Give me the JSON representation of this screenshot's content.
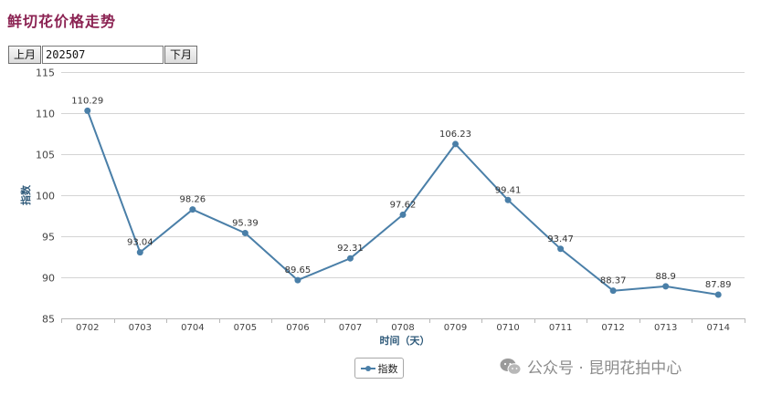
{
  "page": {
    "title": "鲜切花价格走势"
  },
  "nav": {
    "prev_label": "上月",
    "month_value": "202507",
    "next_label": "下月"
  },
  "watermark": {
    "text": "公众号 · 昆明花拍中心"
  },
  "chart_data": {
    "type": "line",
    "categories": [
      "0702",
      "0703",
      "0704",
      "0705",
      "0706",
      "0707",
      "0708",
      "0709",
      "0710",
      "0711",
      "0712",
      "0713",
      "0714"
    ],
    "series": [
      {
        "name": "指数",
        "values": [
          110.29,
          93.04,
          98.26,
          95.39,
          89.65,
          92.31,
          97.62,
          106.23,
          99.41,
          93.47,
          88.37,
          88.9,
          87.89
        ]
      }
    ],
    "value_labels": [
      "110.29",
      "93.04",
      "98.26",
      "95.39",
      "89.65",
      "92.31",
      "97.62",
      "106.23",
      "99.41",
      "93.47",
      "88.37",
      "88.9",
      "87.89"
    ],
    "yticks": [
      "85",
      "90",
      "95",
      "100",
      "105",
      "110",
      "115"
    ],
    "ylim": [
      85,
      115
    ],
    "xlabel": "时间（天）",
    "ylabel": "指数",
    "legend": "bottom-center",
    "grid": true,
    "color": "#4a7fa8"
  }
}
